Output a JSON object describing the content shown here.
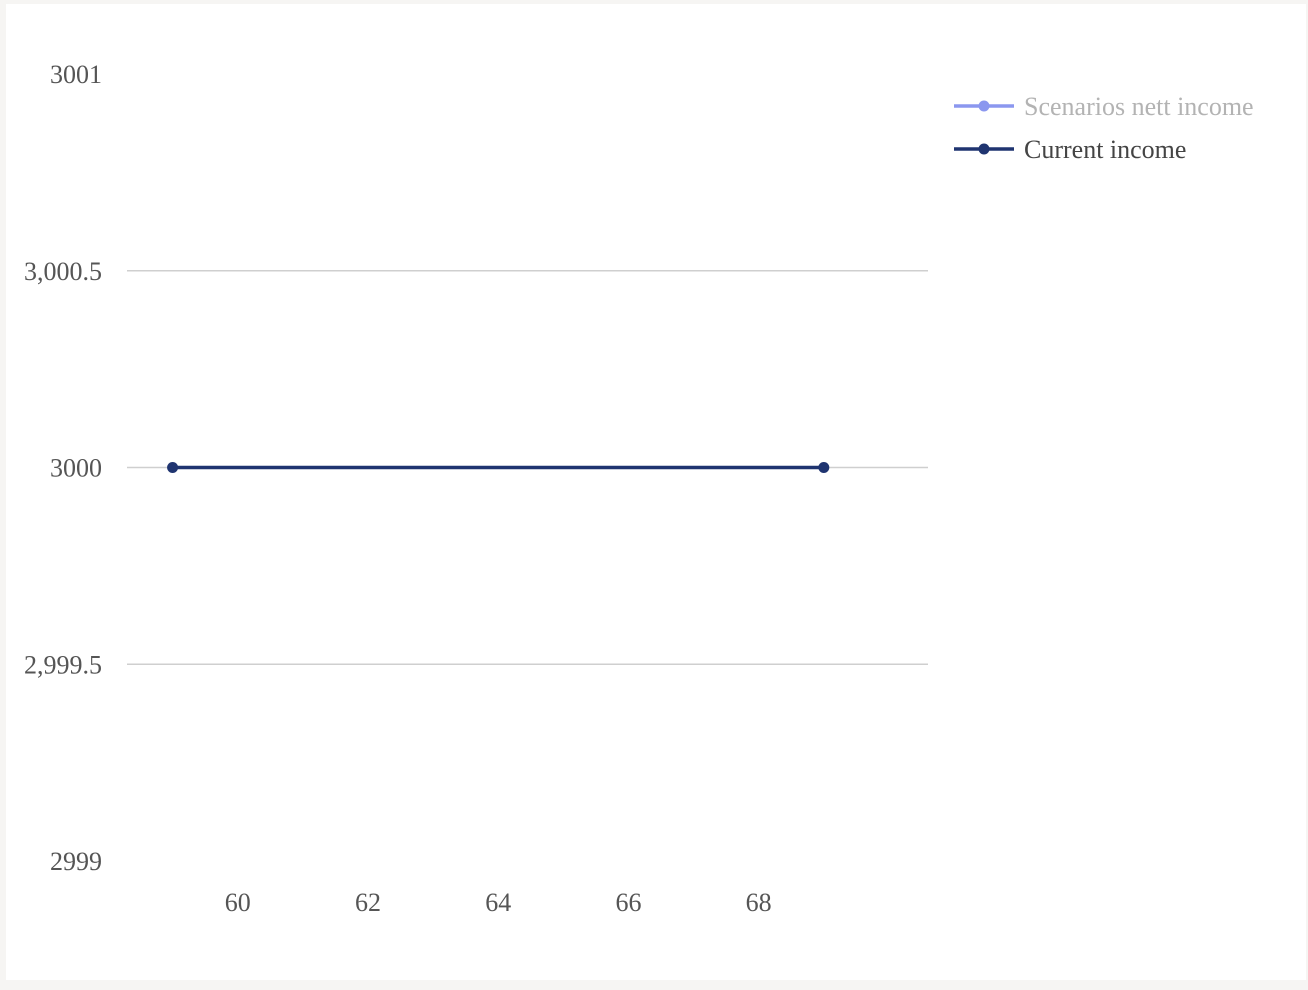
{
  "chart_data": {
    "type": "line",
    "title": "",
    "xlabel": "",
    "ylabel": "",
    "x_ticks": [
      "60",
      "62",
      "64",
      "66",
      "68"
    ],
    "y_ticks": [
      "2999",
      "2,999.5",
      "3000",
      "3,000.5",
      "3001"
    ],
    "xlim": [
      58.3,
      70.6
    ],
    "ylim": [
      2999,
      3001
    ],
    "grid": "horizontal",
    "legend_position": "top-right",
    "series": [
      {
        "name": "Scenarios nett income",
        "color": "#8b97ef",
        "legend_muted": true,
        "x": [],
        "y": []
      },
      {
        "name": "Current income",
        "color": "#1f3470",
        "legend_muted": false,
        "x": [
          59,
          69
        ],
        "y": [
          3000,
          3000
        ]
      }
    ]
  }
}
